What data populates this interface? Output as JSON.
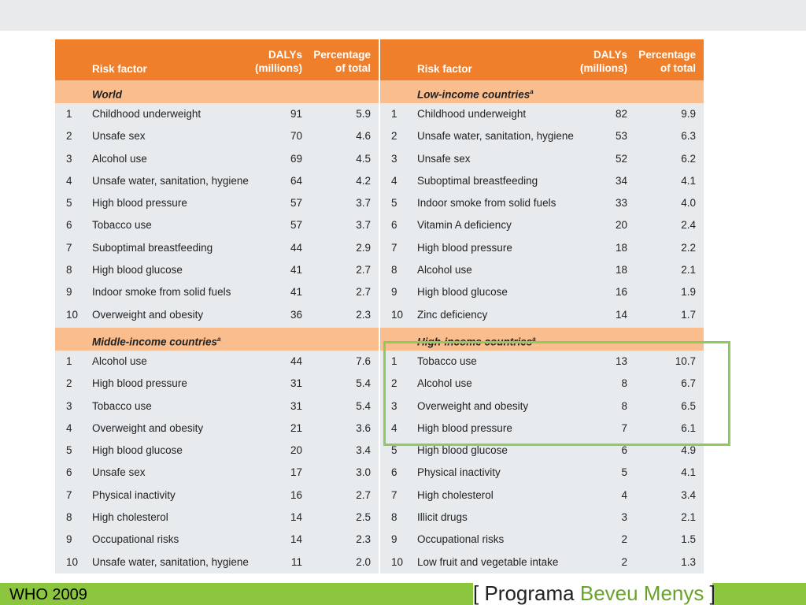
{
  "colors": {
    "header_orange": "#f07f2b",
    "section_peach": "#f9bd8e",
    "row_grey": "#e8ebee",
    "highlight_green": "#8dcc5a",
    "footer_green": "#8cc63f",
    "brand_green": "#6aa32a"
  },
  "header": {
    "risk": "Risk factor",
    "dalys_1": "DALYs",
    "dalys_2": "(millions)",
    "pct_1": "Percentage",
    "pct_2": "of total"
  },
  "sections": {
    "world": {
      "title": "World",
      "sup": "",
      "rows": [
        {
          "rank": "1",
          "risk": "Childhood underweight",
          "dalys": "91",
          "pct": "5.9"
        },
        {
          "rank": "2",
          "risk": "Unsafe sex",
          "dalys": "70",
          "pct": "4.6"
        },
        {
          "rank": "3",
          "risk": "Alcohol use",
          "dalys": "69",
          "pct": "4.5"
        },
        {
          "rank": "4",
          "risk": "Unsafe water, sanitation, hygiene",
          "dalys": "64",
          "pct": "4.2"
        },
        {
          "rank": "5",
          "risk": "High blood pressure",
          "dalys": "57",
          "pct": "3.7"
        },
        {
          "rank": "6",
          "risk": "Tobacco use",
          "dalys": "57",
          "pct": "3.7"
        },
        {
          "rank": "7",
          "risk": "Suboptimal breastfeeding",
          "dalys": "44",
          "pct": "2.9"
        },
        {
          "rank": "8",
          "risk": "High blood glucose",
          "dalys": "41",
          "pct": "2.7"
        },
        {
          "rank": "9",
          "risk": "Indoor smoke from solid fuels",
          "dalys": "41",
          "pct": "2.7"
        },
        {
          "rank": "10",
          "risk": "Overweight and obesity",
          "dalys": "36",
          "pct": "2.3"
        }
      ]
    },
    "low": {
      "title": "Low-income countries",
      "sup": "a",
      "rows": [
        {
          "rank": "1",
          "risk": "Childhood underweight",
          "dalys": "82",
          "pct": "9.9"
        },
        {
          "rank": "2",
          "risk": "Unsafe water, sanitation, hygiene",
          "dalys": "53",
          "pct": "6.3"
        },
        {
          "rank": "3",
          "risk": "Unsafe sex",
          "dalys": "52",
          "pct": "6.2"
        },
        {
          "rank": "4",
          "risk": "Suboptimal breastfeeding",
          "dalys": "34",
          "pct": "4.1"
        },
        {
          "rank": "5",
          "risk": "Indoor smoke from solid fuels",
          "dalys": "33",
          "pct": "4.0"
        },
        {
          "rank": "6",
          "risk": "Vitamin A deficiency",
          "dalys": "20",
          "pct": "2.4"
        },
        {
          "rank": "7",
          "risk": "High blood pressure",
          "dalys": "18",
          "pct": "2.2"
        },
        {
          "rank": "8",
          "risk": "Alcohol use",
          "dalys": "18",
          "pct": "2.1"
        },
        {
          "rank": "9",
          "risk": "High blood glucose",
          "dalys": "16",
          "pct": "1.9"
        },
        {
          "rank": "10",
          "risk": "Zinc deficiency",
          "dalys": "14",
          "pct": "1.7"
        }
      ]
    },
    "middle": {
      "title": "Middle-income countries",
      "sup": "a",
      "rows": [
        {
          "rank": "1",
          "risk": "Alcohol use",
          "dalys": "44",
          "pct": "7.6"
        },
        {
          "rank": "2",
          "risk": "High blood pressure",
          "dalys": "31",
          "pct": "5.4"
        },
        {
          "rank": "3",
          "risk": "Tobacco use",
          "dalys": "31",
          "pct": "5.4"
        },
        {
          "rank": "4",
          "risk": "Overweight and obesity",
          "dalys": "21",
          "pct": "3.6"
        },
        {
          "rank": "5",
          "risk": "High blood glucose",
          "dalys": "20",
          "pct": "3.4"
        },
        {
          "rank": "6",
          "risk": "Unsafe sex",
          "dalys": "17",
          "pct": "3.0"
        },
        {
          "rank": "7",
          "risk": "Physical inactivity",
          "dalys": "16",
          "pct": "2.7"
        },
        {
          "rank": "8",
          "risk": "High cholesterol",
          "dalys": "14",
          "pct": "2.5"
        },
        {
          "rank": "9",
          "risk": "Occupational risks",
          "dalys": "14",
          "pct": "2.3"
        },
        {
          "rank": "10",
          "risk": "Unsafe water, sanitation, hygiene",
          "dalys": "11",
          "pct": "2.0"
        }
      ]
    },
    "high": {
      "title": "High-income countries",
      "sup": "a",
      "rows": [
        {
          "rank": "1",
          "risk": "Tobacco use",
          "dalys": "13",
          "pct": "10.7"
        },
        {
          "rank": "2",
          "risk": "Alcohol use",
          "dalys": "8",
          "pct": "6.7"
        },
        {
          "rank": "3",
          "risk": "Overweight and obesity",
          "dalys": "8",
          "pct": "6.5"
        },
        {
          "rank": "4",
          "risk": "High blood pressure",
          "dalys": "7",
          "pct": "6.1"
        },
        {
          "rank": "5",
          "risk": "High blood glucose",
          "dalys": "6",
          "pct": "4.9"
        },
        {
          "rank": "6",
          "risk": "Physical inactivity",
          "dalys": "5",
          "pct": "4.1"
        },
        {
          "rank": "7",
          "risk": "High cholesterol",
          "dalys": "4",
          "pct": "3.4"
        },
        {
          "rank": "8",
          "risk": "Illicit drugs",
          "dalys": "3",
          "pct": "2.1"
        },
        {
          "rank": "9",
          "risk": "Occupational risks",
          "dalys": "2",
          "pct": "1.5"
        },
        {
          "rank": "10",
          "risk": "Low fruit and vegetable intake",
          "dalys": "2",
          "pct": "1.3"
        }
      ]
    }
  },
  "footer": {
    "source": "WHO 2009",
    "brand_open": "[",
    "brand_1": "Programa",
    "brand_2": "Beveu Menys",
    "brand_close": "]"
  }
}
